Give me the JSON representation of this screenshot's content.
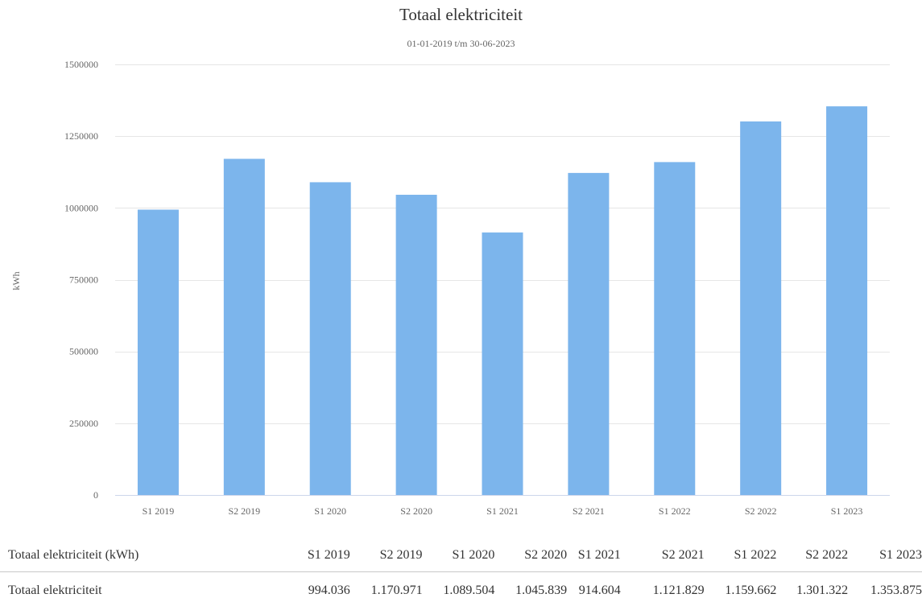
{
  "chart_data": {
    "type": "bar",
    "title": "Totaal elektriciteit",
    "subtitle": "01-01-2019 t/m 30-06-2023",
    "xlabel": "",
    "ylabel": "kWh",
    "categories": [
      "S1 2019",
      "S2 2019",
      "S1 2020",
      "S2 2020",
      "S1 2021",
      "S2 2021",
      "S1 2022",
      "S2 2022",
      "S1 2023"
    ],
    "values": [
      994036,
      1170971,
      1089504,
      1045839,
      914604,
      1121829,
      1159662,
      1301322,
      1353875
    ],
    "ylim": [
      0,
      1500000
    ],
    "yticks": [
      "0",
      "250000",
      "500000",
      "750000",
      "1000000",
      "1250000",
      "1500000"
    ],
    "grid": true,
    "legend": "none",
    "bar_color": "#7cb5ec"
  },
  "table": {
    "header_label": "Totaal elektriciteit (kWh)",
    "columns": [
      "S1 2019",
      "S2 2019",
      "S1 2020",
      "S2 2020",
      "S1 2021",
      "S2 2021",
      "S1 2022",
      "S2 2022",
      "S1 2023"
    ],
    "rows": [
      {
        "label": "Totaal elektriciteit",
        "cells": [
          "994.036",
          "1.170.971",
          "1.089.504",
          "1.045.839",
          "914.604",
          "1.121.829",
          "1.159.662",
          "1.301.322",
          "1.353.875"
        ]
      }
    ]
  }
}
